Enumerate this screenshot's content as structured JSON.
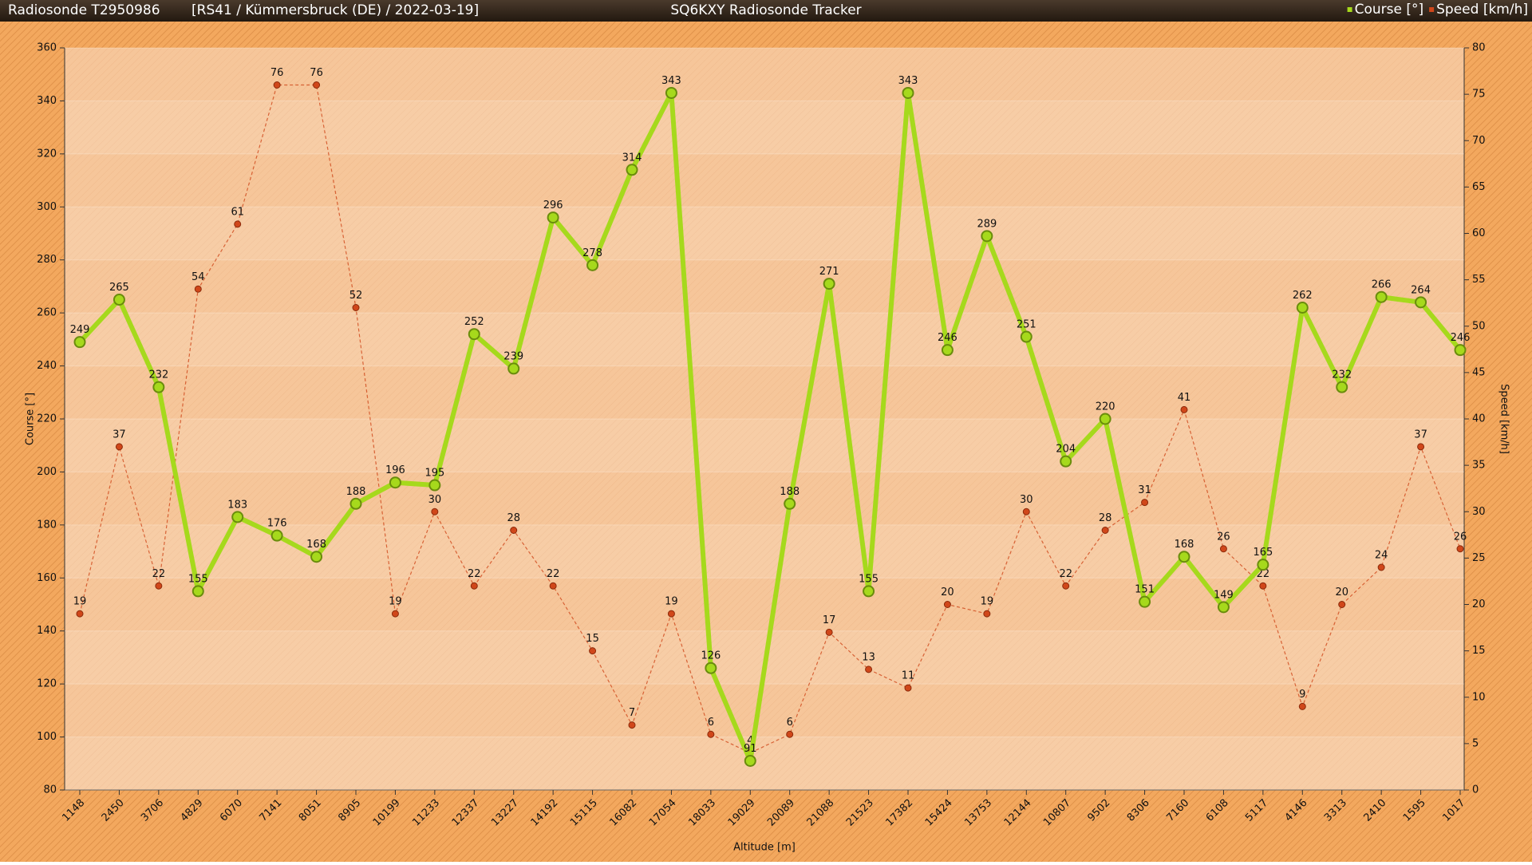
{
  "header": {
    "left": "Radiosonde T2950986",
    "info": "[RS41 / Kümmersbruck (DE) / 2022-03-19]",
    "title": "SQ6KXY Radiosonde Tracker"
  },
  "chart_data": {
    "type": "line",
    "x_label": "Altitude [m]",
    "y_label": "Course [°]",
    "y2_label": "Speed [km/h]",
    "categories": [
      "1148",
      "2450",
      "3706",
      "4829",
      "6070",
      "7141",
      "8051",
      "8905",
      "10199",
      "11233",
      "12337",
      "13227",
      "14192",
      "15115",
      "16082",
      "17054",
      "18033",
      "19029",
      "20089",
      "21088",
      "21523",
      "17382",
      "15424",
      "13753",
      "12144",
      "10807",
      "9502",
      "8306",
      "7160",
      "6108",
      "5117",
      "4146",
      "3313",
      "2410",
      "1595",
      "1017"
    ],
    "series": [
      {
        "name": "Course [°]",
        "color": "#a6d91c",
        "values": [
          249,
          265,
          232,
          155,
          183,
          176,
          168,
          188,
          196,
          195,
          252,
          239,
          296,
          278,
          314,
          343,
          126,
          91,
          188,
          271,
          155,
          343,
          246,
          289,
          251,
          204,
          220,
          151,
          168,
          149,
          165,
          262,
          232,
          266,
          264,
          246
        ]
      },
      {
        "name": "Speed [km/h]",
        "color": "#d0471a",
        "axis": "y2",
        "values": [
          19,
          37,
          22,
          54,
          61,
          76,
          76,
          52,
          19,
          30,
          22,
          28,
          22,
          15,
          7,
          19,
          6,
          4,
          6,
          17,
          13,
          11,
          20,
          19,
          30,
          22,
          28,
          31,
          41,
          26,
          22,
          9,
          20,
          24,
          37,
          26
        ]
      }
    ],
    "ylim": [
      80,
      360
    ],
    "yticks": [
      80,
      100,
      120,
      140,
      160,
      180,
      200,
      220,
      240,
      260,
      280,
      300,
      320,
      340,
      360
    ],
    "y2lim": [
      0,
      80
    ],
    "y2ticks": [
      0,
      5,
      10,
      15,
      20,
      25,
      30,
      35,
      40,
      45,
      50,
      55,
      60,
      65,
      70,
      75,
      80
    ],
    "legend": "top-right",
    "grid": true
  }
}
